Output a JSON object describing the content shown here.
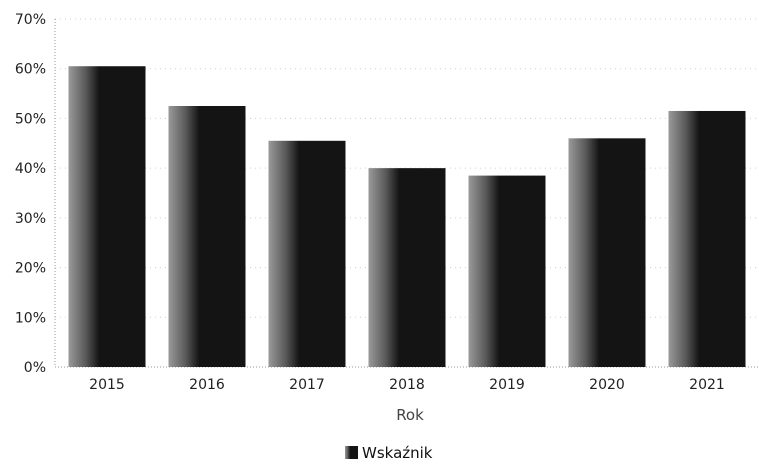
{
  "chart_data": {
    "type": "bar",
    "categories": [
      "2015",
      "2016",
      "2017",
      "2018",
      "2019",
      "2020",
      "2021"
    ],
    "series": [
      {
        "name": "Wskaźnik",
        "values": [
          60.5,
          52.5,
          45.5,
          40.0,
          38.5,
          46.0,
          51.5
        ]
      }
    ],
    "xlabel": "Rok",
    "ylabel": "",
    "ylim": [
      0,
      70
    ],
    "yticks": [
      0,
      10,
      20,
      30,
      40,
      50,
      60,
      70
    ],
    "ytick_labels": [
      "0%",
      "10%",
      "20%",
      "30%",
      "40%",
      "50%",
      "60%",
      "70%"
    ],
    "grid": true,
    "legend_position": "bottom",
    "colors": {
      "bar": "#141414",
      "bar_texture": "#9a9a9a",
      "grid": "#cfcfcf"
    }
  }
}
